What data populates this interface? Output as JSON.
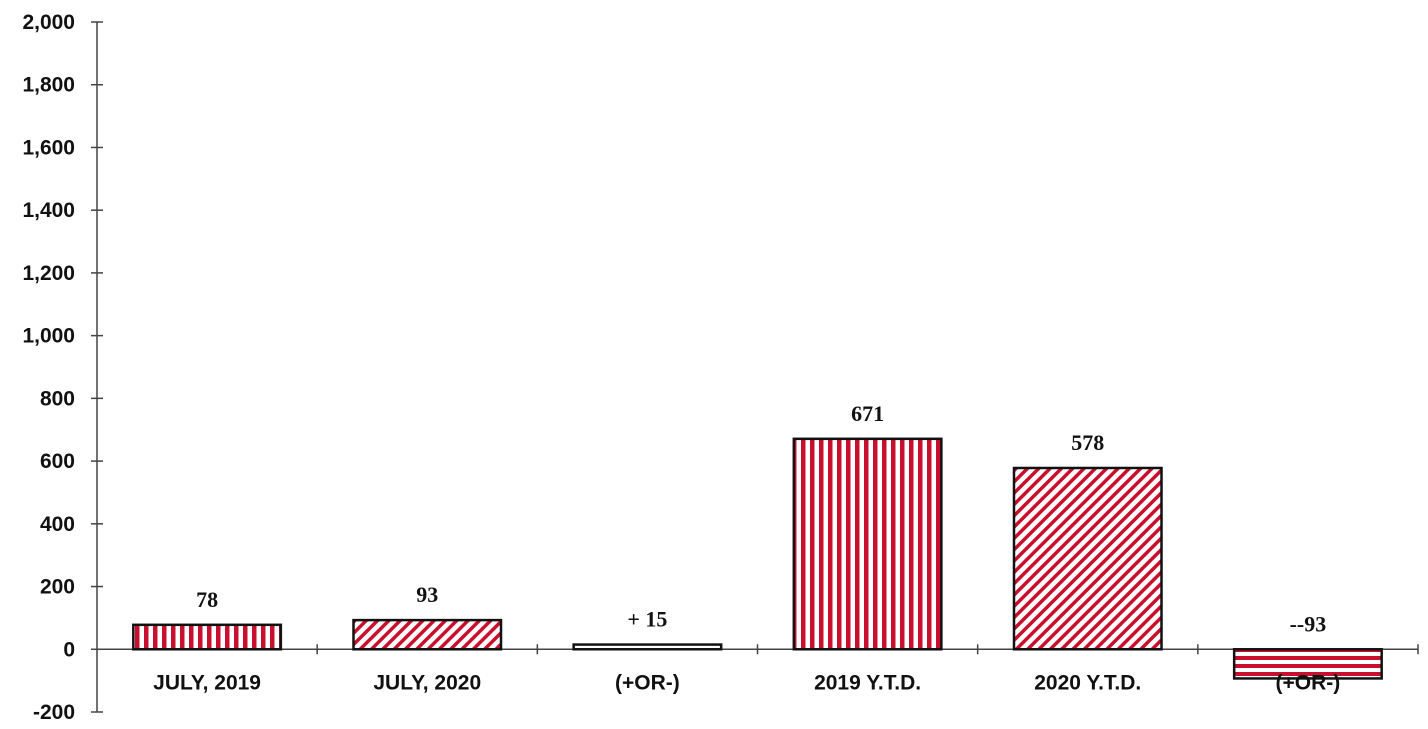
{
  "chart_data": {
    "type": "bar",
    "categories": [
      "JULY, 2019",
      "JULY, 2020",
      "(+OR-)",
      "2019 Y.T.D.",
      "2020 Y.T.D.",
      "(+OR-)"
    ],
    "values": [
      78,
      93,
      15,
      671,
      578,
      -93
    ],
    "data_labels": [
      "78",
      "93",
      "+ 15",
      "671",
      "578",
      "--93"
    ],
    "patterns": [
      "vertical-stripes",
      "diagonal-hatch",
      "none",
      "vertical-stripes",
      "diagonal-hatch",
      "horizontal-stripes"
    ],
    "ylim": [
      -200,
      2000
    ],
    "y_ticks": [
      -200,
      0,
      200,
      400,
      600,
      800,
      1000,
      1200,
      1400,
      1600,
      1800,
      2000
    ],
    "y_tick_labels": [
      "-200",
      "0",
      "200",
      "400",
      "600",
      "800",
      "1,000",
      "1,200",
      "1,400",
      "1,600",
      "1,800",
      "2,000"
    ],
    "title": "",
    "xlabel": "",
    "ylabel": "",
    "grid": false,
    "colors": {
      "bar_fill": "#c8102e",
      "bar_outline": "#111111",
      "axis": "#444444"
    }
  }
}
